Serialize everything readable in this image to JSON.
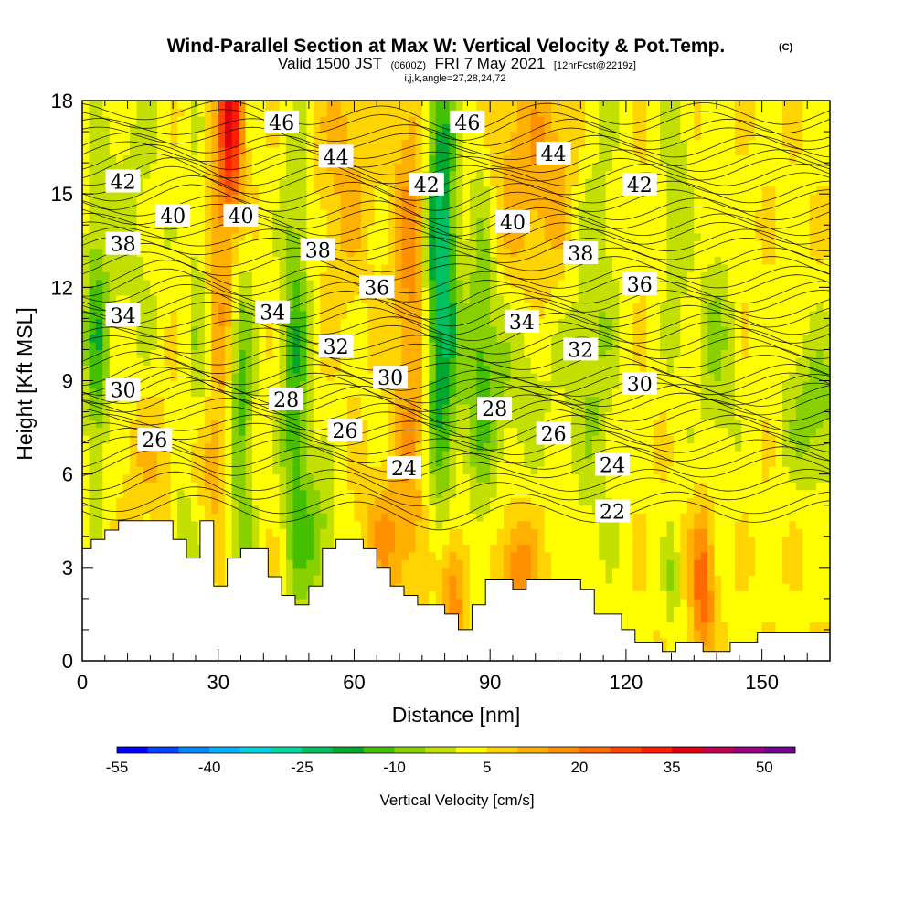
{
  "header": {
    "title_main": "Wind-Parallel Section at Max W: Vertical Velocity & Pot.Temp.",
    "title_copyright": "(C)",
    "valid_prefix": "Valid 1500 JST",
    "valid_utc": "(0600Z)",
    "valid_date": "FRI 7 May 2021",
    "forecast_tag": "[12hrFcst@2219z]",
    "indices": "i,j,k,angle=27,28,24,72"
  },
  "chart_data": {
    "type": "heatmap",
    "title": "Wind-Parallel Section at Max W: Vertical Velocity & Pot.Temp.",
    "xlabel": "Distance [nm]",
    "ylabel": "Height [Kft MSL]",
    "xlim": [
      0,
      165
    ],
    "ylim": [
      0,
      18
    ],
    "xticks": [
      0,
      30,
      60,
      90,
      120,
      150
    ],
    "yticks": [
      0,
      3,
      6,
      9,
      12,
      15,
      18
    ],
    "xtick_labels": [
      "0",
      "30",
      "60",
      "90",
      "120",
      "150"
    ],
    "ytick_labels": [
      "0",
      "3",
      "6",
      "9",
      "12",
      "15",
      "18"
    ],
    "grid": false,
    "colorbar": {
      "title": "Vertical Velocity [cm/s]",
      "min": -55,
      "max": 55,
      "step": 5,
      "tick_values": [
        -55,
        -40,
        -25,
        -10,
        5,
        20,
        35,
        50
      ],
      "tick_labels": [
        "-55",
        "-40",
        "-25",
        "-10",
        "5",
        "20",
        "35",
        "50"
      ],
      "colors": [
        "#0000ff",
        "#0044ff",
        "#0088ff",
        "#00b4ff",
        "#00d4e0",
        "#00d8a0",
        "#00c060",
        "#00a830",
        "#44c000",
        "#88d000",
        "#c4e000",
        "#ffff00",
        "#ffd400",
        "#ffb000",
        "#ff9000",
        "#ff6a00",
        "#ff4400",
        "#ff1c00",
        "#e00010",
        "#c00050",
        "#9a0080",
        "#700090"
      ]
    },
    "terrain": [
      [
        0,
        3.6
      ],
      [
        2,
        3.6
      ],
      [
        2,
        3.9
      ],
      [
        5,
        3.9
      ],
      [
        5,
        4.2
      ],
      [
        8,
        4.2
      ],
      [
        8,
        4.5
      ],
      [
        20,
        4.5
      ],
      [
        20,
        3.9
      ],
      [
        23,
        3.9
      ],
      [
        23,
        3.3
      ],
      [
        26,
        3.3
      ],
      [
        26,
        4.5
      ],
      [
        29,
        4.5
      ],
      [
        29,
        2.4
      ],
      [
        32,
        2.4
      ],
      [
        32,
        3.3
      ],
      [
        35,
        3.3
      ],
      [
        35,
        3.6
      ],
      [
        41,
        3.6
      ],
      [
        41,
        2.7
      ],
      [
        44,
        2.7
      ],
      [
        44,
        2.1
      ],
      [
        47,
        2.1
      ],
      [
        47,
        1.8
      ],
      [
        50,
        1.8
      ],
      [
        50,
        2.4
      ],
      [
        53,
        2.4
      ],
      [
        53,
        3.6
      ],
      [
        56,
        3.6
      ],
      [
        56,
        3.9
      ],
      [
        62,
        3.9
      ],
      [
        62,
        3.6
      ],
      [
        65,
        3.6
      ],
      [
        65,
        3.0
      ],
      [
        68,
        3.0
      ],
      [
        68,
        2.4
      ],
      [
        71,
        2.4
      ],
      [
        71,
        2.1
      ],
      [
        74,
        2.1
      ],
      [
        74,
        1.8
      ],
      [
        80,
        1.8
      ],
      [
        80,
        1.5
      ],
      [
        83,
        1.5
      ],
      [
        83,
        1.0
      ],
      [
        86,
        1.0
      ],
      [
        86,
        1.8
      ],
      [
        89,
        1.8
      ],
      [
        89,
        2.6
      ],
      [
        95,
        2.6
      ],
      [
        95,
        2.3
      ],
      [
        98,
        2.3
      ],
      [
        98,
        2.6
      ],
      [
        110,
        2.6
      ],
      [
        110,
        2.3
      ],
      [
        113,
        2.3
      ],
      [
        113,
        1.5
      ],
      [
        119,
        1.5
      ],
      [
        119,
        1.0
      ],
      [
        122,
        1.0
      ],
      [
        122,
        0.6
      ],
      [
        128,
        0.6
      ],
      [
        128,
        0.3
      ],
      [
        131,
        0.3
      ],
      [
        131,
        0.6
      ],
      [
        137,
        0.6
      ],
      [
        137,
        0.3
      ],
      [
        143,
        0.3
      ],
      [
        143,
        0.6
      ],
      [
        149,
        0.6
      ],
      [
        149,
        0.9
      ],
      [
        165,
        0.9
      ]
    ],
    "theta_contours": [
      {
        "label": "22",
        "x": 117,
        "y": 4.8
      },
      {
        "label": "24",
        "x": 71,
        "y": 6.2
      },
      {
        "label": "24",
        "x": 117,
        "y": 6.3
      },
      {
        "label": "26",
        "x": 16,
        "y": 7.1
      },
      {
        "label": "26",
        "x": 58,
        "y": 7.4
      },
      {
        "label": "26",
        "x": 104,
        "y": 7.3
      },
      {
        "label": "28",
        "x": 45,
        "y": 8.4
      },
      {
        "label": "28",
        "x": 91,
        "y": 8.1
      },
      {
        "label": "30",
        "x": 9,
        "y": 8.7
      },
      {
        "label": "30",
        "x": 68,
        "y": 9.1
      },
      {
        "label": "30",
        "x": 123,
        "y": 8.9
      },
      {
        "label": "32",
        "x": 56,
        "y": 10.1
      },
      {
        "label": "32",
        "x": 110,
        "y": 10.0
      },
      {
        "label": "34",
        "x": 9,
        "y": 11.1
      },
      {
        "label": "34",
        "x": 42,
        "y": 11.2
      },
      {
        "label": "34",
        "x": 97,
        "y": 10.9
      },
      {
        "label": "36",
        "x": 65,
        "y": 12.0
      },
      {
        "label": "36",
        "x": 123,
        "y": 12.1
      },
      {
        "label": "38",
        "x": 9,
        "y": 13.4
      },
      {
        "label": "38",
        "x": 52,
        "y": 13.2
      },
      {
        "label": "38",
        "x": 110,
        "y": 13.1
      },
      {
        "label": "40",
        "x": 20,
        "y": 14.3
      },
      {
        "label": "40",
        "x": 35,
        "y": 14.3
      },
      {
        "label": "40",
        "x": 95,
        "y": 14.1
      },
      {
        "label": "42",
        "x": 9,
        "y": 15.4
      },
      {
        "label": "42",
        "x": 76,
        "y": 15.3
      },
      {
        "label": "42",
        "x": 123,
        "y": 15.3
      },
      {
        "label": "44",
        "x": 56,
        "y": 16.2
      },
      {
        "label": "44",
        "x": 104,
        "y": 16.3
      },
      {
        "label": "46",
        "x": 44,
        "y": 17.3
      },
      {
        "label": "46",
        "x": 85,
        "y": 17.3
      }
    ]
  }
}
